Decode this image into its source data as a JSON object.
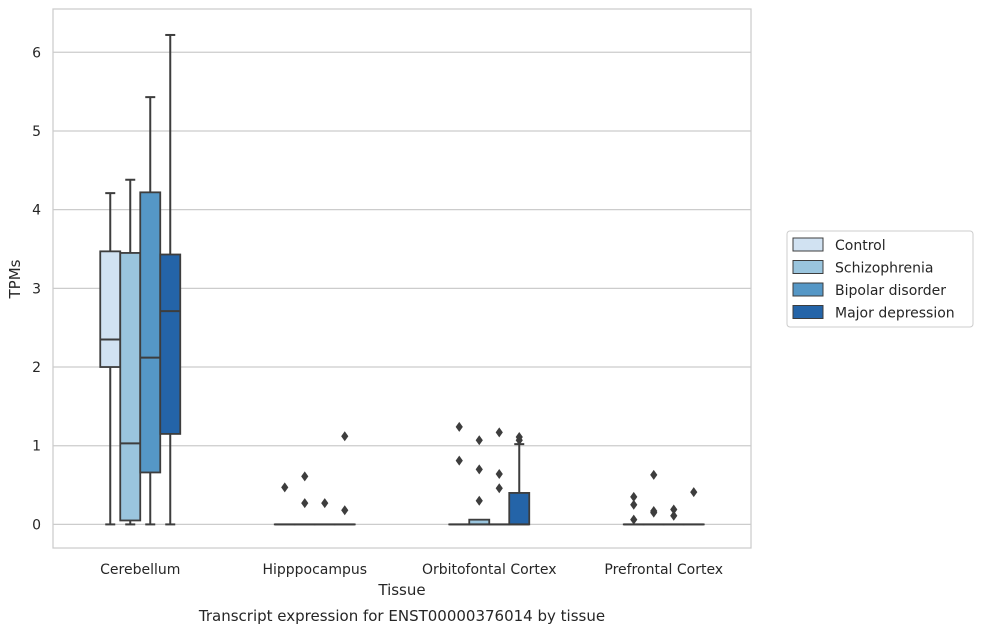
{
  "caption": "Transcript expression for ENST00000376014 by tissue",
  "chart_data": {
    "type": "box",
    "title": "",
    "xlabel": "Tissue",
    "ylabel": "TPMs",
    "ylim": [
      -0.3,
      6.55
    ],
    "yticks": [
      0,
      1,
      2,
      3,
      4,
      5,
      6
    ],
    "grid": "horizontal",
    "legend_position": "right",
    "categories": [
      "Cerebellum",
      "Hipppocampus",
      "Orbitofontal Cortex",
      "Prefrontal Cortex"
    ],
    "series": [
      {
        "name": "Control",
        "color": "#d1e2f2",
        "boxes": [
          {
            "whisker_low": 0,
            "q1": 2.0,
            "median": 2.35,
            "q3": 3.47,
            "whisker_high": 4.21,
            "outliers": []
          },
          {
            "whisker_low": 0,
            "q1": 0,
            "median": 0,
            "q3": 0,
            "whisker_high": 0,
            "outliers": [
              0.47
            ]
          },
          {
            "whisker_low": 0,
            "q1": 0,
            "median": 0,
            "q3": 0,
            "whisker_high": 0,
            "outliers": [
              1.24,
              0.81
            ]
          },
          {
            "whisker_low": 0,
            "q1": 0,
            "median": 0,
            "q3": 0,
            "whisker_high": 0,
            "outliers": [
              0.35,
              0.25,
              0.06
            ]
          }
        ]
      },
      {
        "name": "Schizophrenia",
        "color": "#9ac5de",
        "boxes": [
          {
            "whisker_low": 0,
            "q1": 0.05,
            "median": 1.03,
            "q3": 3.45,
            "whisker_high": 4.38,
            "outliers": []
          },
          {
            "whisker_low": 0,
            "q1": 0,
            "median": 0,
            "q3": 0,
            "whisker_high": 0,
            "outliers": [
              0.61,
              0.27
            ]
          },
          {
            "whisker_low": 0,
            "q1": 0,
            "median": 0,
            "q3": 0.06,
            "whisker_high": 0.06,
            "outliers": [
              1.07,
              0.7,
              0.3
            ]
          },
          {
            "whisker_low": 0,
            "q1": 0,
            "median": 0,
            "q3": 0,
            "whisker_high": 0,
            "outliers": [
              0.63,
              0.17,
              0.15
            ]
          }
        ]
      },
      {
        "name": "Bipolar disorder",
        "color": "#5597c6",
        "boxes": [
          {
            "whisker_low": 0,
            "q1": 0.66,
            "median": 2.12,
            "q3": 4.22,
            "whisker_high": 5.43,
            "outliers": []
          },
          {
            "whisker_low": 0,
            "q1": 0,
            "median": 0,
            "q3": 0,
            "whisker_high": 0,
            "outliers": [
              0.27
            ]
          },
          {
            "whisker_low": 0,
            "q1": 0,
            "median": 0,
            "q3": 0,
            "whisker_high": 0,
            "outliers": [
              1.17,
              0.64,
              0.46
            ]
          },
          {
            "whisker_low": 0,
            "q1": 0,
            "median": 0,
            "q3": 0,
            "whisker_high": 0,
            "outliers": [
              0.19,
              0.11
            ]
          }
        ]
      },
      {
        "name": "Major depression",
        "color": "#2464a8",
        "boxes": [
          {
            "whisker_low": 0,
            "q1": 1.15,
            "median": 2.71,
            "q3": 3.43,
            "whisker_high": 6.22,
            "outliers": []
          },
          {
            "whisker_low": 0,
            "q1": 0,
            "median": 0,
            "q3": 0,
            "whisker_high": 0,
            "outliers": [
              1.12,
              0.18
            ]
          },
          {
            "whisker_low": 0,
            "q1": 0,
            "median": 0,
            "q3": 0.4,
            "whisker_high": 1.02,
            "outliers": [
              1.11,
              1.07
            ]
          },
          {
            "whisker_low": 0,
            "q1": 0,
            "median": 0,
            "q3": 0,
            "whisker_high": 0,
            "outliers": [
              0.41
            ]
          }
        ]
      }
    ]
  }
}
